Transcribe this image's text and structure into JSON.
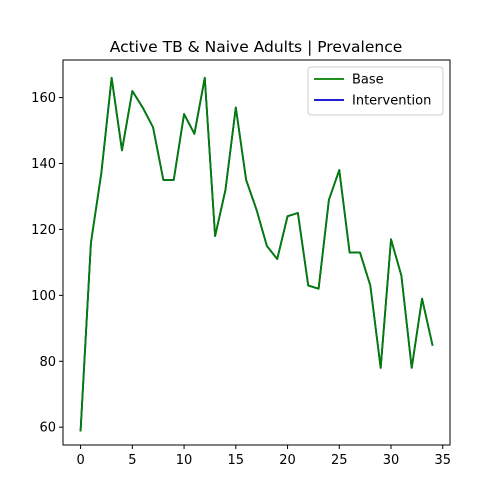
{
  "chart_data": {
    "type": "line",
    "title": "Active TB & Naive Adults | Prevalence",
    "xlabel": "",
    "ylabel": "",
    "xlim": [
      -1.7,
      35.7
    ],
    "ylim": [
      54.6,
      171.4
    ],
    "xticks": [
      0,
      5,
      10,
      15,
      20,
      25,
      30,
      35
    ],
    "yticks": [
      60,
      80,
      100,
      120,
      140,
      160
    ],
    "grid": false,
    "legend_position": "top-right",
    "x": [
      0,
      1,
      2,
      3,
      4,
      5,
      6,
      7,
      8,
      9,
      10,
      11,
      12,
      13,
      14,
      15,
      16,
      17,
      18,
      19,
      20,
      21,
      22,
      23,
      24,
      25,
      26,
      27,
      28,
      29,
      30,
      31,
      32,
      33,
      34
    ],
    "series": [
      {
        "name": "Base",
        "color": "#008000",
        "values": [
          59,
          116,
          137,
          166,
          144,
          162,
          157,
          151,
          135,
          135,
          155,
          149,
          166,
          118,
          132,
          157,
          135,
          126,
          115,
          111,
          124,
          125,
          103,
          102,
          129,
          138,
          113,
          113,
          103,
          78,
          117,
          106,
          78,
          99,
          85
        ]
      },
      {
        "name": "Intervention",
        "color": "#0000cc",
        "values": [
          59,
          116,
          137,
          166,
          144,
          162,
          157,
          151,
          135,
          135,
          155,
          149,
          166,
          118,
          132,
          157,
          135,
          126,
          115,
          111,
          124,
          125,
          103,
          102,
          129,
          138,
          113,
          113,
          103,
          78,
          117,
          106,
          78,
          99,
          85
        ]
      }
    ],
    "draw_order": [
      "Intervention",
      "Base"
    ]
  }
}
